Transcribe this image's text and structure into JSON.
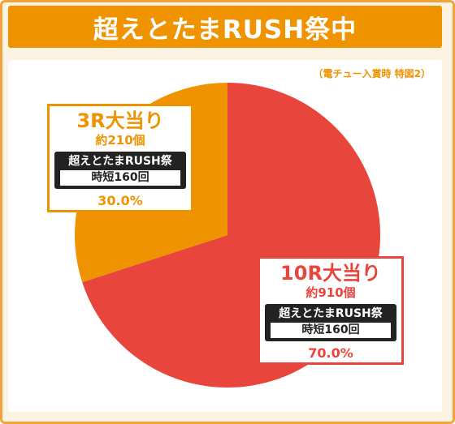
{
  "title": "超えとたまRUSH祭中",
  "note": "（電チュー入賞時 特図2）",
  "colors": {
    "frame": "#f2a33c",
    "title_bg": "#ef9300",
    "slice_3r": "#ef9300",
    "slice_10r": "#e8453c",
    "panel_bg": "#fdf3e3"
  },
  "chart_data": {
    "type": "pie",
    "title": "超えとたまRUSH祭中",
    "slices": [
      {
        "label": "10R大当り",
        "balls": "約910個",
        "mode": "超えとたまRUSH祭",
        "jitan": "時短160回",
        "value": 70.0,
        "value_label": "70.0%",
        "color": "#e8453c"
      },
      {
        "label": "3R大当り",
        "balls": "約210個",
        "mode": "超えとたまRUSH祭",
        "jitan": "時短160回",
        "value": 30.0,
        "value_label": "30.0%",
        "color": "#ef9300"
      }
    ]
  }
}
